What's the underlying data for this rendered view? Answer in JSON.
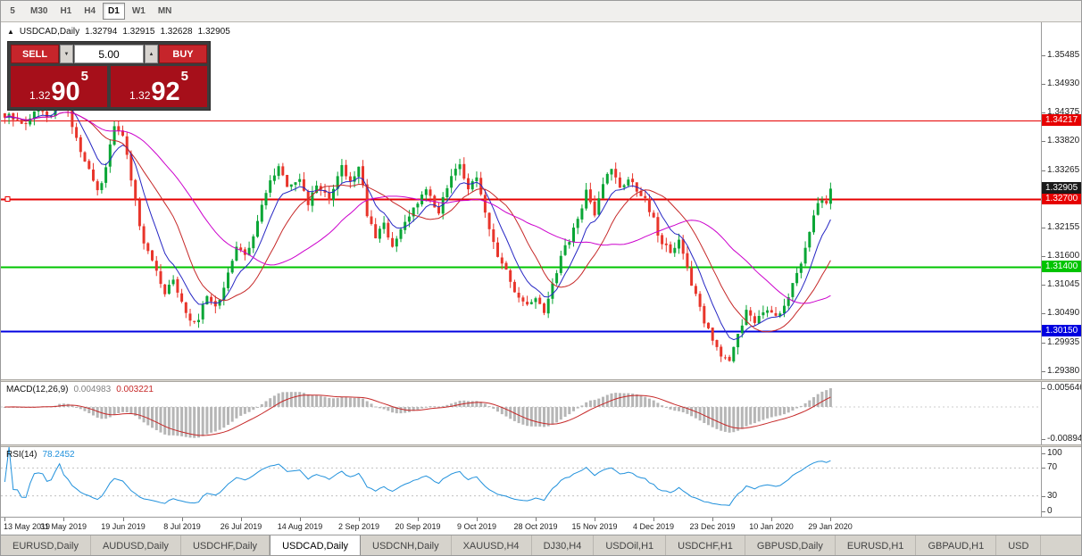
{
  "toolbar": {
    "timeframes": [
      {
        "label": "5",
        "active": false
      },
      {
        "label": "M30",
        "active": false
      },
      {
        "label": "H1",
        "active": false
      },
      {
        "label": "H4",
        "active": false
      },
      {
        "label": "D1",
        "active": true
      },
      {
        "label": "W1",
        "active": false
      },
      {
        "label": "MN",
        "active": false
      }
    ]
  },
  "chart_header": {
    "icon": "▲",
    "symbol": "USDCAD,Daily",
    "open": "1.32794",
    "high": "1.32915",
    "low": "1.32628",
    "close": "1.32905"
  },
  "trade_panel": {
    "sell_label": "SELL",
    "buy_label": "BUY",
    "volume": "5.00",
    "volume_down_glyph": "▼",
    "volume_up_glyph": "▲",
    "sell_prefix": "1.32",
    "sell_big": "90",
    "sell_sup": "5",
    "buy_prefix": "1.32",
    "buy_big": "92",
    "buy_sup": "5"
  },
  "theme": {
    "panel_dark": "#3c3c3c",
    "button_red": "#c6252b",
    "price_box_red": "#a60f1a"
  },
  "chart_data": {
    "type": "candlestick",
    "symbol": "USDCAD",
    "timeframe": "Daily",
    "ohlc_display": {
      "open": 1.32794,
      "high": 1.32915,
      "low": 1.32628,
      "close": 1.32905
    },
    "y_range": [
      1.2922,
      1.3612
    ],
    "candle_count": 197,
    "visible_slots": 246,
    "tick_interval": 14,
    "up_color": "#0aa636",
    "down_color": "#e8352b",
    "x_ticks": [
      "13 May 2019",
      "31 May 2019",
      "19 Jun 2019",
      "8 Jul 2019",
      "26 Jul 2019",
      "14 Aug 2019",
      "2 Sep 2019",
      "20 Sep 2019",
      "9 Oct 2019",
      "28 Oct 2019",
      "15 Nov 2019",
      "4 Dec 2019",
      "23 Dec 2019",
      "10 Jan 2020",
      "29 Jan 2020"
    ],
    "price_scale_labels": [
      "1.35485",
      "1.34930",
      "1.34375",
      "1.33820",
      "1.33265",
      "1.32710",
      "1.32155",
      "1.31600",
      "1.31045",
      "1.30490",
      "1.29935",
      "1.29380"
    ],
    "price_path": [
      [
        0,
        1.3435
      ],
      [
        4,
        1.3415
      ],
      [
        8,
        1.3445
      ],
      [
        11,
        1.3428
      ],
      [
        13,
        1.3495
      ],
      [
        15,
        1.3445
      ],
      [
        17,
        1.3382
      ],
      [
        20,
        1.3332
      ],
      [
        22,
        1.3287
      ],
      [
        24,
        1.333
      ],
      [
        26,
        1.3413
      ],
      [
        28,
        1.34
      ],
      [
        30,
        1.3312
      ],
      [
        33,
        1.3182
      ],
      [
        36,
        1.313
      ],
      [
        38,
        1.3087
      ],
      [
        40,
        1.311
      ],
      [
        43,
        1.3052
      ],
      [
        45,
        1.3026
      ],
      [
        48,
        1.308
      ],
      [
        50,
        1.3062
      ],
      [
        53,
        1.3125
      ],
      [
        55,
        1.318
      ],
      [
        57,
        1.3157
      ],
      [
        60,
        1.323
      ],
      [
        63,
        1.3308
      ],
      [
        65,
        1.333
      ],
      [
        67,
        1.329
      ],
      [
        70,
        1.3312
      ],
      [
        72,
        1.3262
      ],
      [
        74,
        1.33
      ],
      [
        77,
        1.3272
      ],
      [
        80,
        1.333
      ],
      [
        82,
        1.3302
      ],
      [
        84,
        1.3338
      ],
      [
        86,
        1.3242
      ],
      [
        88,
        1.3192
      ],
      [
        90,
        1.3226
      ],
      [
        92,
        1.3176
      ],
      [
        95,
        1.323
      ],
      [
        98,
        1.3262
      ],
      [
        100,
        1.329
      ],
      [
        103,
        1.3242
      ],
      [
        106,
        1.332
      ],
      [
        108,
        1.334
      ],
      [
        110,
        1.3292
      ],
      [
        112,
        1.3312
      ],
      [
        114,
        1.3246
      ],
      [
        117,
        1.3162
      ],
      [
        119,
        1.3132
      ],
      [
        121,
        1.3086
      ],
      [
        124,
        1.3062
      ],
      [
        126,
        1.3086
      ],
      [
        128,
        1.3052
      ],
      [
        130,
        1.3112
      ],
      [
        133,
        1.3176
      ],
      [
        136,
        1.3232
      ],
      [
        138,
        1.3286
      ],
      [
        140,
        1.3246
      ],
      [
        142,
        1.3306
      ],
      [
        144,
        1.333
      ],
      [
        146,
        1.3292
      ],
      [
        148,
        1.331
      ],
      [
        151,
        1.3282
      ],
      [
        154,
        1.3232
      ],
      [
        156,
        1.3182
      ],
      [
        158,
        1.3166
      ],
      [
        160,
        1.3196
      ],
      [
        162,
        1.3132
      ],
      [
        164,
        1.3082
      ],
      [
        166,
        1.3032
      ],
      [
        168,
        1.2996
      ],
      [
        170,
        1.2966
      ],
      [
        172,
        1.2958
      ],
      [
        174,
        1.3012
      ],
      [
        176,
        1.3052
      ],
      [
        178,
        1.3034
      ],
      [
        180,
        1.3049
      ],
      [
        182,
        1.3053
      ],
      [
        184,
        1.3044
      ],
      [
        186,
        1.3082
      ],
      [
        188,
        1.3122
      ],
      [
        190,
        1.318
      ],
      [
        192,
        1.3236
      ],
      [
        194,
        1.3274
      ],
      [
        195,
        1.3258
      ],
      [
        196,
        1.3291
      ]
    ],
    "moving_averages": [
      {
        "period": 8,
        "method": "ema",
        "color": "#2727c4",
        "width": 1
      },
      {
        "period": 16,
        "method": "sma",
        "color": "#c62828",
        "width": 1
      },
      {
        "period": 34,
        "method": "sma",
        "color": "#cc00cc",
        "width": 1
      }
    ],
    "h_lines": [
      {
        "price": 1.34217,
        "label": "1.34217",
        "color": "#e60000",
        "width": 1,
        "handle": false
      },
      {
        "price": 1.327,
        "label": "1.32700",
        "color": "#e60000",
        "width": 2,
        "handle": true
      },
      {
        "price": 1.314,
        "label": "1.31400",
        "color": "#00c400",
        "width": 2,
        "handle": false
      },
      {
        "price": 1.3015,
        "label": "1.30150",
        "color": "#0000e0",
        "width": 2,
        "handle": false
      }
    ],
    "current_price": {
      "value": 1.32905,
      "label": "1.32905",
      "color": "#1a1a1a"
    },
    "indicators": {
      "macd": {
        "title": "MACD(12,26,9)",
        "value_main": "0.004983",
        "value_signal": "0.003221",
        "params": [
          12,
          26,
          9
        ],
        "y_range": [
          -0.0102,
          0.0068
        ],
        "histogram_color": "#b6b6b6",
        "signal_color": "#c62828",
        "scale_labels": [
          {
            "value": 0.005646,
            "label": "0.005646"
          },
          {
            "value": -0.008944,
            "label": "-0.008944"
          }
        ]
      },
      "rsi": {
        "title": "RSI(14)",
        "value": "78.2452",
        "period": 14,
        "color": "#2191dc",
        "levels": [
          70,
          30
        ],
        "scale_labels": [
          {
            "value": 100,
            "label": "100"
          },
          {
            "value": 70,
            "label": "70"
          },
          {
            "value": 30,
            "label": "30"
          },
          {
            "value": 0,
            "label": "0"
          }
        ]
      }
    }
  },
  "tabs": {
    "active_index": 3,
    "items": [
      {
        "label": "EURUSD,Daily"
      },
      {
        "label": "AUDUSD,Daily"
      },
      {
        "label": "USDCHF,Daily"
      },
      {
        "label": "USDCAD,Daily"
      },
      {
        "label": "USDCNH,Daily"
      },
      {
        "label": "XAUUSD,H4"
      },
      {
        "label": "DJ30,H4"
      },
      {
        "label": "USDOil,H1"
      },
      {
        "label": "USDCHF,H1"
      },
      {
        "label": "GBPUSD,Daily"
      },
      {
        "label": "EURUSD,H1"
      },
      {
        "label": "GBPAUD,H1"
      },
      {
        "label": "USD"
      }
    ]
  }
}
